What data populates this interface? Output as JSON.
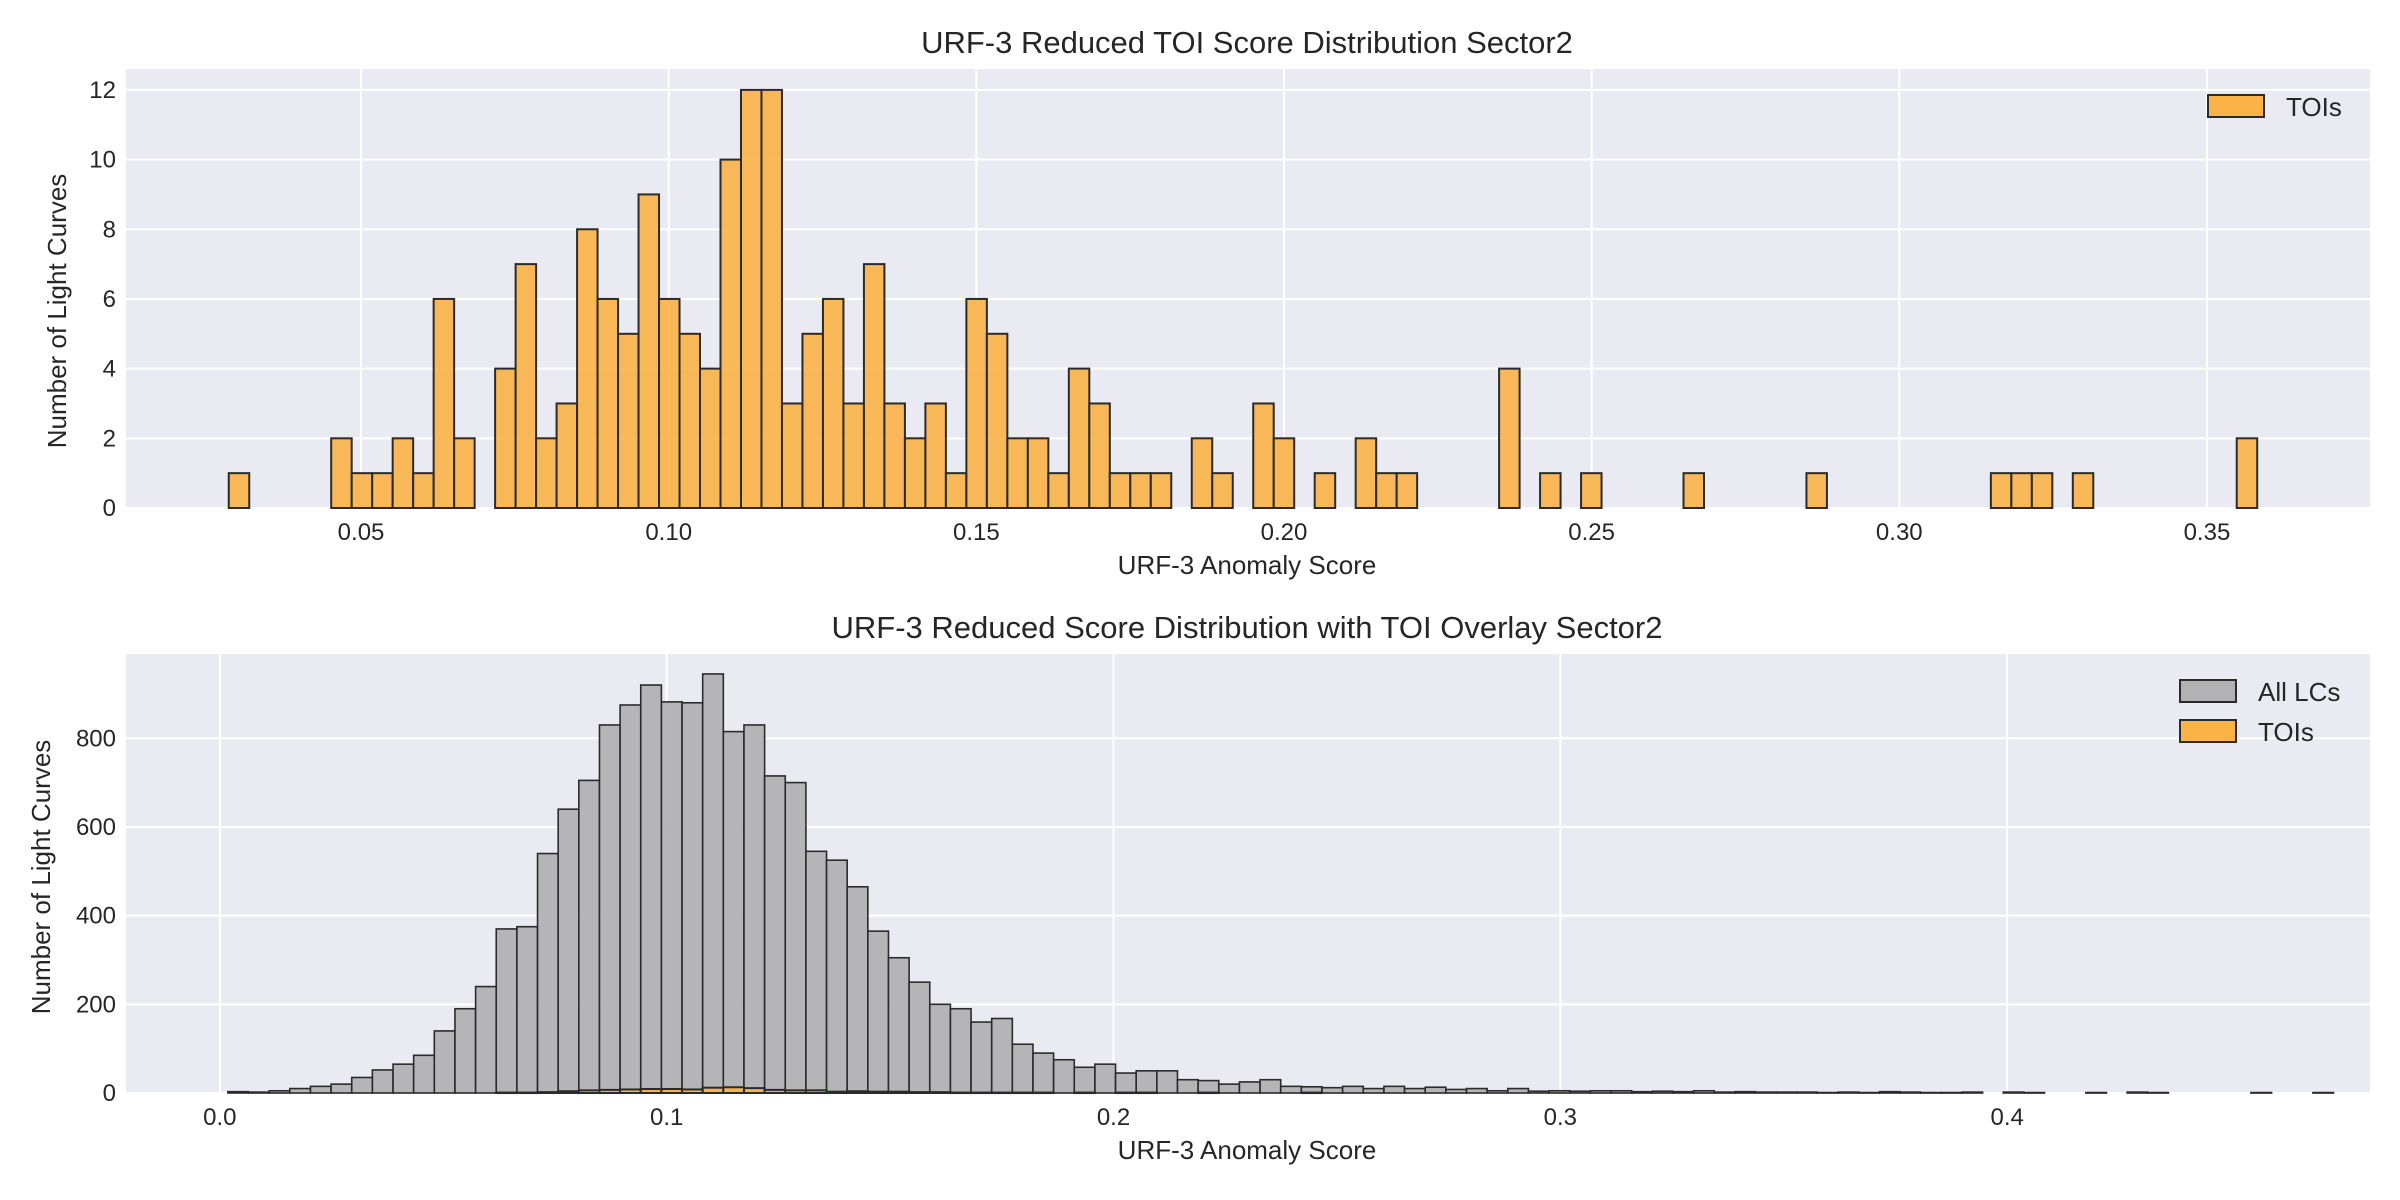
{
  "palette": {
    "toi_fill": "#fbb347",
    "all_fill": "#b2b2b4",
    "edge": "#2b2b2b",
    "panel_bg": "#eaeaf2",
    "grid": "#ffffff"
  },
  "chart_data": [
    {
      "type": "bar",
      "title": "URF-3 Reduced TOI Score Distribution Sector2",
      "xlabel": "URF-3 Anomaly Score",
      "ylabel": "Number of Light Curves",
      "xlim": [
        0.0118,
        0.3765
      ],
      "ylim": [
        0,
        12.6
      ],
      "xticks": [
        {
          "value": 0.05,
          "label": "0.05"
        },
        {
          "value": 0.1,
          "label": "0.10"
        },
        {
          "value": 0.15,
          "label": "0.15"
        },
        {
          "value": 0.2,
          "label": "0.20"
        },
        {
          "value": 0.25,
          "label": "0.25"
        },
        {
          "value": 0.3,
          "label": "0.30"
        },
        {
          "value": 0.35,
          "label": "0.35"
        }
      ],
      "yticks": [
        {
          "value": 0,
          "label": "0"
        },
        {
          "value": 2,
          "label": "2"
        },
        {
          "value": 4,
          "label": "4"
        },
        {
          "value": 6,
          "label": "6"
        },
        {
          "value": 8,
          "label": "8"
        },
        {
          "value": 10,
          "label": "10"
        },
        {
          "value": 12,
          "label": "12"
        }
      ],
      "legend": {
        "position": "top-right"
      },
      "bin_start": 0.0285,
      "bin_width": 0.00333,
      "series": [
        {
          "name": "TOIs",
          "color_key": "toi_fill",
          "values": [
            1,
            0,
            0,
            0,
            0,
            2,
            1,
            1,
            2,
            1,
            6,
            2,
            0,
            4,
            7,
            2,
            3,
            8,
            6,
            5,
            9,
            6,
            5,
            4,
            10,
            12,
            12,
            3,
            5,
            6,
            3,
            7,
            3,
            2,
            3,
            1,
            6,
            5,
            2,
            2,
            1,
            4,
            3,
            1,
            1,
            1,
            0,
            2,
            1,
            0,
            3,
            2,
            0,
            1,
            0,
            2,
            1,
            1,
            0,
            0,
            0,
            0,
            4,
            0,
            1,
            0,
            1,
            0,
            0,
            0,
            0,
            1,
            0,
            0,
            0,
            0,
            0,
            1,
            0,
            0,
            0,
            0,
            0,
            0,
            0,
            0,
            1,
            1,
            1,
            0,
            1,
            0,
            0,
            0,
            0,
            0,
            0,
            0,
            2
          ]
        }
      ]
    },
    {
      "type": "bar",
      "title": "URF-3 Reduced Score Distribution with TOI Overlay Sector2",
      "xlabel": "URF-3 Anomaly Score",
      "ylabel": "Number of Light Curves",
      "xlim": [
        -0.021,
        0.4812
      ],
      "ylim": [
        0,
        990
      ],
      "xticks": [
        {
          "value": 0.0,
          "label": "0.0"
        },
        {
          "value": 0.1,
          "label": "0.1"
        },
        {
          "value": 0.2,
          "label": "0.2"
        },
        {
          "value": 0.3,
          "label": "0.3"
        },
        {
          "value": 0.4,
          "label": "0.4"
        }
      ],
      "yticks": [
        {
          "value": 0,
          "label": "0"
        },
        {
          "value": 200,
          "label": "200"
        },
        {
          "value": 400,
          "label": "400"
        },
        {
          "value": 600,
          "label": "600"
        },
        {
          "value": 800,
          "label": "800"
        }
      ],
      "legend": {
        "position": "top-right"
      },
      "bin_start": 0.0018,
      "bin_width": 0.00462,
      "series": [
        {
          "name": "All LCs",
          "color_key": "all_fill",
          "values": [
            3,
            2,
            5,
            10,
            15,
            20,
            35,
            52,
            65,
            85,
            140,
            190,
            240,
            370,
            375,
            540,
            640,
            705,
            830,
            875,
            920,
            882,
            880,
            945,
            815,
            830,
            715,
            700,
            545,
            525,
            465,
            365,
            305,
            250,
            200,
            190,
            160,
            168,
            110,
            90,
            75,
            58,
            65,
            45,
            50,
            50,
            30,
            28,
            20,
            25,
            30,
            15,
            14,
            12,
            15,
            10,
            15,
            10,
            13,
            8,
            10,
            5,
            10,
            4,
            5,
            4,
            5,
            5,
            3,
            4,
            3,
            5,
            2,
            3,
            2,
            2,
            2,
            1,
            2,
            1,
            3,
            2,
            1,
            1,
            2,
            0,
            2,
            1,
            0,
            0,
            1,
            0,
            2,
            1,
            0,
            0,
            0,
            0,
            1,
            0,
            0,
            1,
            0,
            0,
            0,
            0,
            0,
            0,
            0,
            0,
            0,
            0,
            0,
            0,
            0,
            0,
            0,
            0,
            0,
            0,
            1,
            0,
            0,
            0,
            0,
            0,
            0,
            0,
            0,
            0,
            0,
            0,
            1,
            0,
            0,
            0,
            0,
            0,
            0,
            0,
            0,
            0,
            0,
            0,
            0,
            0,
            0,
            0,
            0,
            0,
            1,
            0,
            0,
            0,
            0,
            0,
            0,
            0,
            0,
            0,
            0,
            0,
            0,
            0,
            0,
            0,
            0,
            0,
            0,
            0,
            0,
            0,
            0,
            0,
            0,
            0,
            0,
            0,
            0,
            0,
            0,
            0,
            0,
            0,
            0,
            0,
            0,
            0,
            0,
            0,
            0,
            0,
            0,
            0,
            0,
            0,
            0,
            0,
            0,
            0,
            0,
            0,
            0,
            0,
            0,
            0,
            0,
            0,
            0,
            0,
            0,
            0,
            0,
            0,
            0,
            0,
            0,
            0,
            0,
            0,
            0,
            0,
            0,
            0,
            0,
            0,
            0,
            0,
            0,
            0,
            0,
            0,
            0,
            0,
            0,
            0,
            0,
            0,
            0,
            0,
            0,
            0,
            0,
            0,
            0,
            0,
            0,
            0,
            0,
            0,
            0,
            0,
            0,
            0,
            0,
            0,
            0,
            0,
            0,
            0,
            0,
            0,
            0,
            0,
            0,
            0,
            0,
            0,
            0,
            0,
            0,
            0,
            0,
            0,
            0,
            0,
            0,
            0,
            0,
            0,
            0,
            0,
            0,
            0,
            0,
            0,
            0,
            0,
            0,
            0,
            0,
            0,
            0,
            0,
            0,
            0,
            0,
            0,
            0,
            0,
            0,
            0
          ]
        },
        {
          "name": "TOIs",
          "color_key": "toi_fill",
          "values": [
            0,
            0,
            0,
            0,
            0,
            0,
            0,
            0,
            0,
            0,
            0,
            0,
            0,
            1,
            1,
            2,
            4,
            6,
            7,
            8,
            9,
            9,
            8,
            12,
            13,
            11,
            7,
            6,
            6,
            3,
            4,
            3,
            3,
            2,
            2,
            1,
            1,
            1,
            1,
            1,
            0,
            1,
            0,
            1,
            1,
            0,
            0,
            1,
            0,
            0,
            0,
            0,
            1,
            0,
            0,
            0,
            0,
            0,
            0,
            0,
            0,
            0,
            0,
            0,
            0,
            0,
            0,
            0,
            0,
            0,
            0,
            0,
            0,
            0,
            0,
            0,
            0,
            0,
            0,
            0,
            0,
            0,
            0,
            0,
            0,
            0,
            0,
            0,
            0,
            0,
            0,
            0,
            0,
            0,
            0,
            0,
            0,
            0,
            0,
            0,
            0,
            0,
            0,
            0,
            0,
            0,
            0,
            0,
            0,
            0,
            0,
            0,
            0,
            0,
            0,
            0,
            0,
            0,
            0,
            0,
            0,
            0,
            0,
            0,
            0,
            0,
            0,
            0,
            0,
            0,
            0,
            0,
            0,
            0,
            0,
            0,
            0,
            0,
            0,
            0,
            0,
            0,
            0,
            0,
            0,
            0,
            0,
            0,
            0,
            0,
            0,
            0,
            0,
            0,
            0,
            0,
            0,
            0,
            0,
            0,
            0,
            0,
            0,
            0,
            0,
            0,
            0,
            0,
            0,
            0,
            0,
            0,
            0,
            0,
            0,
            0,
            0,
            0,
            0,
            0,
            0,
            0,
            0,
            0,
            0,
            0,
            0,
            0,
            0,
            0,
            0,
            0,
            0,
            0,
            0,
            0,
            0,
            0,
            0,
            0,
            0,
            0,
            0,
            0,
            0,
            0,
            0,
            0,
            0,
            0,
            0,
            0,
            0,
            0,
            0,
            0,
            0,
            0,
            0,
            0,
            0,
            0,
            0,
            0,
            0,
            0,
            0,
            0,
            0,
            0,
            0,
            0,
            0,
            0,
            0,
            0,
            0,
            0,
            0,
            0,
            0,
            0,
            0,
            0,
            0,
            0,
            0,
            0,
            0,
            0,
            0,
            0,
            0,
            0,
            0,
            0,
            0,
            0,
            0,
            0,
            0,
            0,
            0,
            0,
            0,
            0,
            0,
            0,
            0,
            0,
            0,
            0,
            0,
            0,
            0,
            0,
            0,
            0,
            0,
            0,
            0,
            0,
            0,
            0,
            0,
            0,
            0,
            0,
            0,
            0,
            0,
            0,
            0,
            0,
            0,
            0,
            0,
            0,
            0,
            0,
            0,
            0
          ]
        }
      ]
    }
  ]
}
